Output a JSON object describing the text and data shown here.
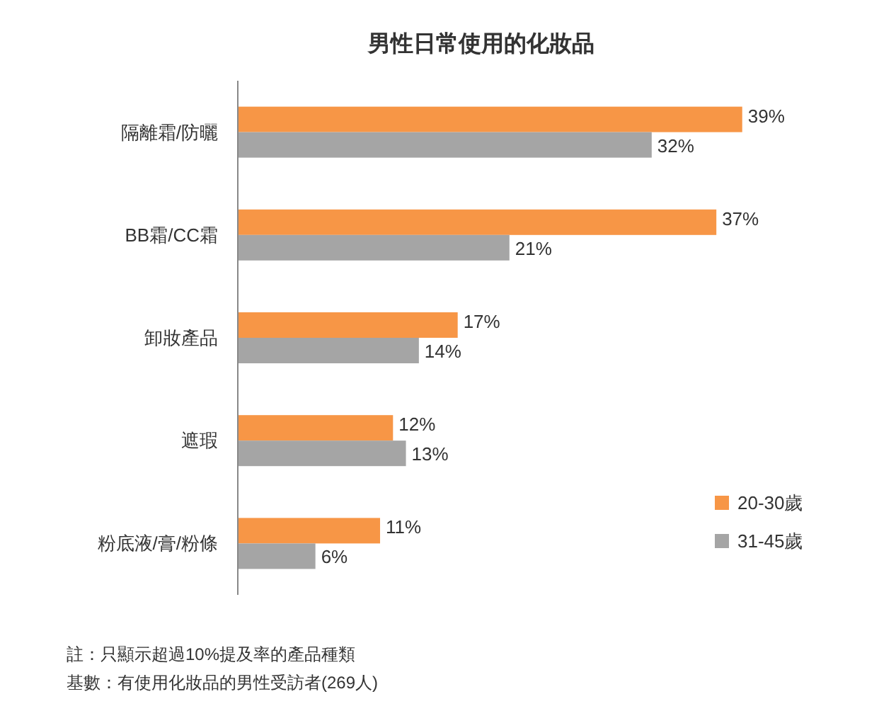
{
  "chart_data": {
    "type": "bar",
    "orientation": "horizontal",
    "title": "男性日常使用的化妝品",
    "categories": [
      "隔離霜/防曬",
      "BB霜/CC霜",
      "卸妝產品",
      "遮瑕",
      "粉底液/膏/粉條"
    ],
    "series": [
      {
        "name": "20-30歲",
        "color": "#f79646",
        "values": [
          39,
          37,
          17,
          12,
          11
        ],
        "value_labels": [
          "39%",
          "37%",
          "17%",
          "12%",
          "11%"
        ]
      },
      {
        "name": "31-45歲",
        "color": "#a5a5a5",
        "values": [
          32,
          21,
          14,
          13,
          6
        ],
        "value_labels": [
          "32%",
          "21%",
          "14%",
          "13%",
          "6%"
        ]
      }
    ],
    "legend": "bottom right",
    "grid": false,
    "annotations": [
      "註：只顯示超過10%提及率的產品種類",
      "基數：有使用化妝品的男性受訪者(269人)"
    ]
  }
}
